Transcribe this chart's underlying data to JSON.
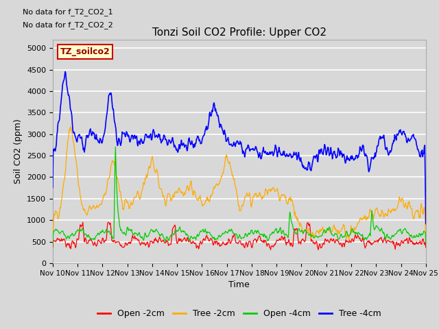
{
  "title": "Tonzi Soil CO2 Profile: Upper CO2",
  "xlabel": "Time",
  "ylabel": "Soil CO2 (ppm)",
  "ylim": [
    0,
    5200
  ],
  "yticks": [
    0,
    500,
    1000,
    1500,
    2000,
    2500,
    3000,
    3500,
    4000,
    4500,
    5000
  ],
  "xtick_labels": [
    "Nov 10",
    "Nov 11",
    "Nov 12",
    "Nov 13",
    "Nov 14",
    "Nov 15",
    "Nov 16",
    "Nov 17",
    "Nov 18",
    "Nov 19",
    "Nov 20",
    "Nov 21",
    "Nov 22",
    "Nov 23",
    "Nov 24",
    "Nov 25"
  ],
  "no_data_text": [
    "No data for f_T2_CO2_1",
    "No data for f_T2_CO2_2"
  ],
  "legend_box_label": "TZ_soilco2",
  "legend_entries": [
    "Open -2cm",
    "Tree -2cm",
    "Open -4cm",
    "Tree -4cm"
  ],
  "legend_colors": [
    "#ff0000",
    "#ffaa00",
    "#00cc00",
    "#0000ff"
  ],
  "colors": {
    "open_2cm": "#ff0000",
    "tree_2cm": "#ffaa00",
    "open_4cm": "#00cc00",
    "tree_4cm": "#0000ff"
  },
  "background_color": "#d8d8d8",
  "plot_bg_color": "#d8d8d8",
  "grid_color": "#ffffff"
}
